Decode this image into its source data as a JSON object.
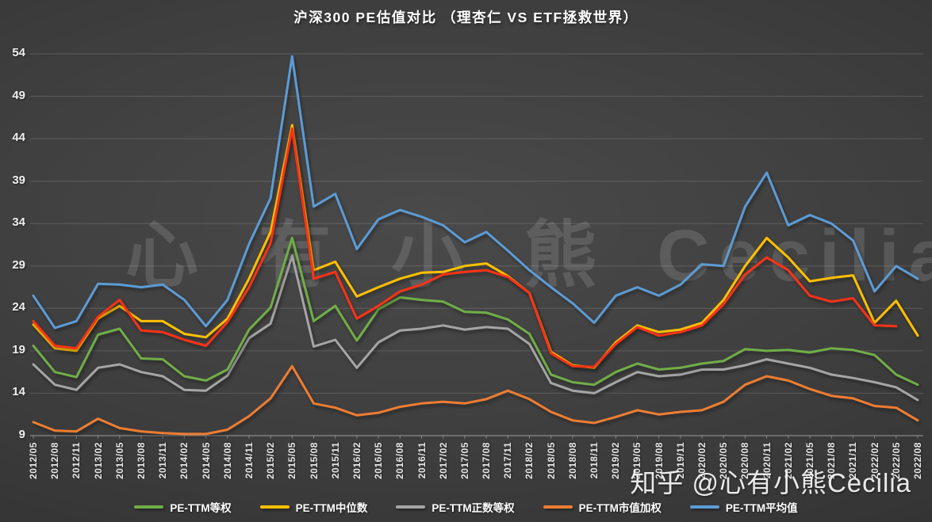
{
  "title": "沪深300 PE估值对比 （理杏仁 VS ETF拯救世界）",
  "watermarks": {
    "center": "心 有 小 熊 Cecilia",
    "bottom_right": "知乎 @心有小熊Cecilia"
  },
  "colors": {
    "background": "#3e3e3e",
    "grid": "rgba(255,255,255,0.15)",
    "axis": "rgba(255,255,255,0.32)",
    "text": "#efefef",
    "title_text": "#ffffff"
  },
  "chart_data": {
    "type": "line",
    "title": "沪深300 PE估值对比 （理杏仁 VS ETF拯救世界）",
    "xlabel": "",
    "ylabel": "",
    "ylim": [
      9,
      54
    ],
    "yticks": [
      9,
      14,
      19,
      24,
      29,
      34,
      39,
      44,
      49,
      54
    ],
    "grid": true,
    "legend_position": "bottom",
    "x_axis_label_rotation": -90,
    "categories": [
      "2012/05",
      "2012/08",
      "2012/11",
      "2013/02",
      "2013/05",
      "2013/08",
      "2013/11",
      "2014/02",
      "2014/05",
      "2014/08",
      "2014/11",
      "2015/02",
      "2015/05",
      "2015/08",
      "2015/11",
      "2016/02",
      "2016/05",
      "2016/08",
      "2016/11",
      "2017/02",
      "2017/05",
      "2017/08",
      "2017/11",
      "2018/02",
      "2018/05",
      "2018/08",
      "2018/11",
      "2019/02",
      "2019/05",
      "2019/08",
      "2019/11",
      "2020/02",
      "2020/05",
      "2020/08",
      "2020/11",
      "2021/02",
      "2021/05",
      "2021/08",
      "2021/11",
      "2022/02",
      "2022/05",
      "2022/08"
    ],
    "series": [
      {
        "name": "PE-TTM等权",
        "color": "#70AD47",
        "in_legend": true,
        "values": [
          19.6,
          16.5,
          15.9,
          20.9,
          21.6,
          18.1,
          18.0,
          16.0,
          15.5,
          16.8,
          21.5,
          24.1,
          32.3,
          22.5,
          24.3,
          20.2,
          23.9,
          25.3,
          25.0,
          24.8,
          23.6,
          23.5,
          22.7,
          21.0,
          16.2,
          15.3,
          15.0,
          16.5,
          17.5,
          16.8,
          17.0,
          17.5,
          17.8,
          19.2,
          19.0,
          19.1,
          18.8,
          19.3,
          19.1,
          18.5,
          16.2,
          15.0
        ]
      },
      {
        "name": "PE-TTM中位数",
        "color": "#FFC000",
        "in_legend": true,
        "values": [
          22.1,
          19.3,
          19.0,
          22.8,
          24.3,
          22.5,
          22.5,
          21.0,
          20.6,
          22.8,
          27.5,
          33.0,
          45.6,
          28.5,
          29.5,
          25.4,
          26.5,
          27.5,
          28.2,
          28.3,
          29.0,
          29.3,
          27.8,
          25.8,
          18.9,
          17.3,
          17.0,
          20.0,
          22.0,
          21.2,
          21.5,
          22.3,
          25.0,
          29.0,
          32.3,
          30.0,
          27.2,
          27.6,
          27.9,
          22.3,
          24.9,
          20.8
        ]
      },
      {
        "name": "PE-TTM正数等权",
        "color": "#A5A5A5",
        "in_legend": true,
        "values": [
          17.4,
          15.0,
          14.4,
          17.0,
          17.4,
          16.5,
          16.0,
          14.4,
          14.3,
          16.1,
          20.5,
          22.2,
          30.2,
          19.5,
          20.3,
          17.0,
          20.0,
          21.4,
          21.6,
          22.0,
          21.5,
          21.8,
          21.6,
          19.8,
          15.2,
          14.3,
          14.0,
          15.3,
          16.5,
          16.0,
          16.2,
          16.8,
          16.8,
          17.3,
          18.0,
          17.5,
          17.0,
          16.2,
          15.8,
          15.3,
          14.7,
          13.2
        ]
      },
      {
        "name": "PE-TTM市值加权",
        "color": "#ED7D31",
        "in_legend": true,
        "values": [
          10.6,
          9.6,
          9.5,
          11.0,
          9.9,
          9.5,
          9.3,
          9.2,
          9.2,
          9.7,
          11.3,
          13.4,
          17.2,
          12.8,
          12.3,
          11.4,
          11.7,
          12.4,
          12.8,
          13.0,
          12.8,
          13.3,
          14.3,
          13.3,
          11.8,
          10.8,
          10.5,
          11.2,
          12.0,
          11.5,
          11.8,
          12.0,
          13.0,
          15.0,
          16.0,
          15.5,
          14.5,
          13.7,
          13.4,
          12.5,
          12.3,
          10.8
        ]
      },
      {
        "name": "PE-TTM平均值",
        "color": "#5B9BD5",
        "in_legend": true,
        "values": [
          25.5,
          21.7,
          22.5,
          26.9,
          26.8,
          26.5,
          26.8,
          25.0,
          21.9,
          25.0,
          31.6,
          37.0,
          53.7,
          36.0,
          37.5,
          31.0,
          34.5,
          35.6,
          34.8,
          33.8,
          31.8,
          33.0,
          30.8,
          28.5,
          26.5,
          24.6,
          22.3,
          25.5,
          26.5,
          25.5,
          26.8,
          29.2,
          29.0,
          36.0,
          40.0,
          33.8,
          35.0,
          34.0,
          32.0,
          26.0,
          29.0,
          27.5
        ]
      },
      {
        "name": "unlabeled-red-series",
        "color": "#FA3214",
        "in_legend": false,
        "values": [
          22.5,
          19.6,
          19.3,
          23.0,
          25.0,
          21.4,
          21.2,
          20.3,
          19.6,
          22.4,
          26.5,
          31.7,
          45.2,
          27.5,
          28.3,
          22.8,
          24.3,
          26.0,
          26.8,
          28.0,
          28.3,
          28.5,
          27.7,
          25.8,
          18.7,
          17.2,
          17.1,
          19.8,
          21.8,
          20.8,
          21.2,
          22.0,
          24.5,
          28.0,
          30.0,
          28.5,
          25.5,
          24.8,
          25.2,
          22.0,
          21.9,
          null
        ]
      }
    ],
    "draw_order": [
      2,
      0,
      3,
      1,
      5,
      4
    ]
  }
}
